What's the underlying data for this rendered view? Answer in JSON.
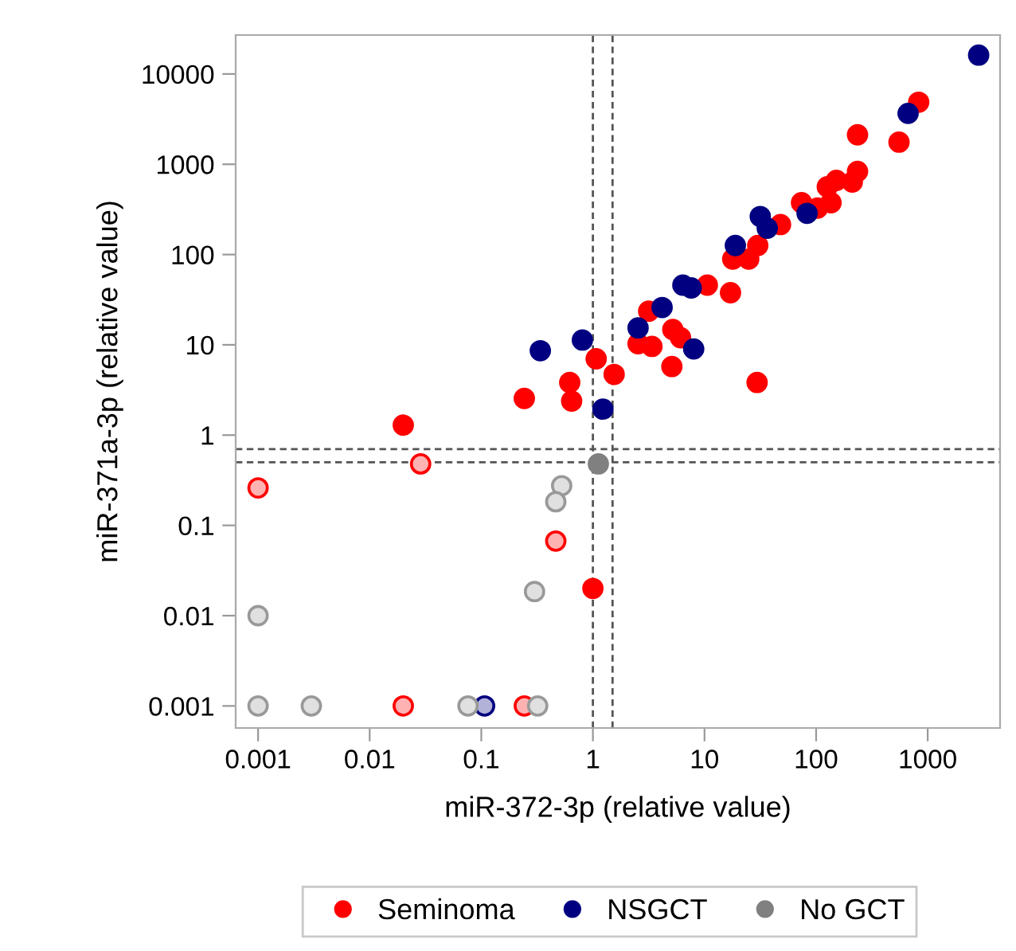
{
  "chart_data": {
    "type": "scatter",
    "xlabel": "miR-372-3p (relative value)",
    "ylabel": "miR-371a-3p (relative value)",
    "log": "xy",
    "xlim": [
      0.00063,
      4450
    ],
    "ylim": [
      0.00057,
      27000
    ],
    "xticks": [
      0.001,
      0.01,
      0.1,
      1,
      10,
      100,
      1000
    ],
    "yticks": [
      0.001,
      0.01,
      0.1,
      1,
      10,
      100,
      1000,
      10000
    ],
    "grid": false,
    "legend": "bottom",
    "marker": "circle",
    "ref_lines": [
      {
        "axis": "x",
        "value": 1,
        "label": null,
        "color": "#555555",
        "line_style": "dashed"
      },
      {
        "axis": "x",
        "value": 1.5,
        "label": null,
        "color": "#555555",
        "line_style": "dashed"
      },
      {
        "axis": "y",
        "value": 0.7,
        "label": null,
        "color": "#555555",
        "line_style": "dashed"
      },
      {
        "axis": "y",
        "value": 0.5,
        "label": null,
        "color": "#555555",
        "line_style": "dashed"
      }
    ],
    "series": [
      {
        "name": "Seminoma",
        "color": "#ff0000",
        "x": [
          830,
          235,
          553,
          235,
          211,
          152,
          126,
          136,
          74,
          103,
          48,
          30,
          17.9,
          24.9,
          10.6,
          17.1,
          3.16,
          5.2,
          6.1,
          2.54,
          3.38,
          1.07,
          1.55,
          5.1,
          0.62,
          29.6,
          0.243,
          0.645,
          0.02,
          1.0
        ],
        "values": [
          4870,
          2120,
          1760,
          832,
          635,
          663,
          564,
          375,
          375,
          327,
          215,
          126,
          89,
          89,
          45.8,
          37.8,
          23.6,
          14.8,
          12,
          10.3,
          9.6,
          7,
          4.7,
          5.75,
          3.83,
          3.83,
          2.55,
          2.38,
          1.29,
          0.02
        ]
      },
      {
        "name": "NSGCT",
        "color": "#000080",
        "x": [
          2860,
          667,
          83,
          31.6,
          36.5,
          18.9,
          6.4,
          7.6,
          4.17,
          2.54,
          8.0,
          0.338,
          0.805,
          1.23
        ],
        "values": [
          16200,
          3660,
          286,
          264,
          196,
          126,
          45.8,
          42.7,
          25.9,
          15.4,
          9.0,
          8.6,
          11.3,
          1.94
        ]
      },
      {
        "name": "No GCT",
        "color": "#808080",
        "x": [
          1.12
        ],
        "values": [
          0.48
        ]
      },
      {
        "color": "#ff0000",
        "x": [
          0.0286,
          0.001,
          0.465,
          0.02,
          0.243
        ],
        "values": [
          0.48,
          0.26,
          0.067,
          0.001,
          0.001
        ]
      },
      {
        "color": "#000080",
        "x": [
          0.107
        ],
        "values": [
          0.001
        ]
      },
      {
        "color": "#999999",
        "x": [
          0.525,
          0.465,
          0.3,
          0.001,
          0.001,
          0.003,
          0.076,
          0.32
        ],
        "values": [
          0.275,
          0.183,
          0.0185,
          0.01,
          0.001,
          0.001,
          0.001,
          0.001
        ]
      }
    ]
  }
}
